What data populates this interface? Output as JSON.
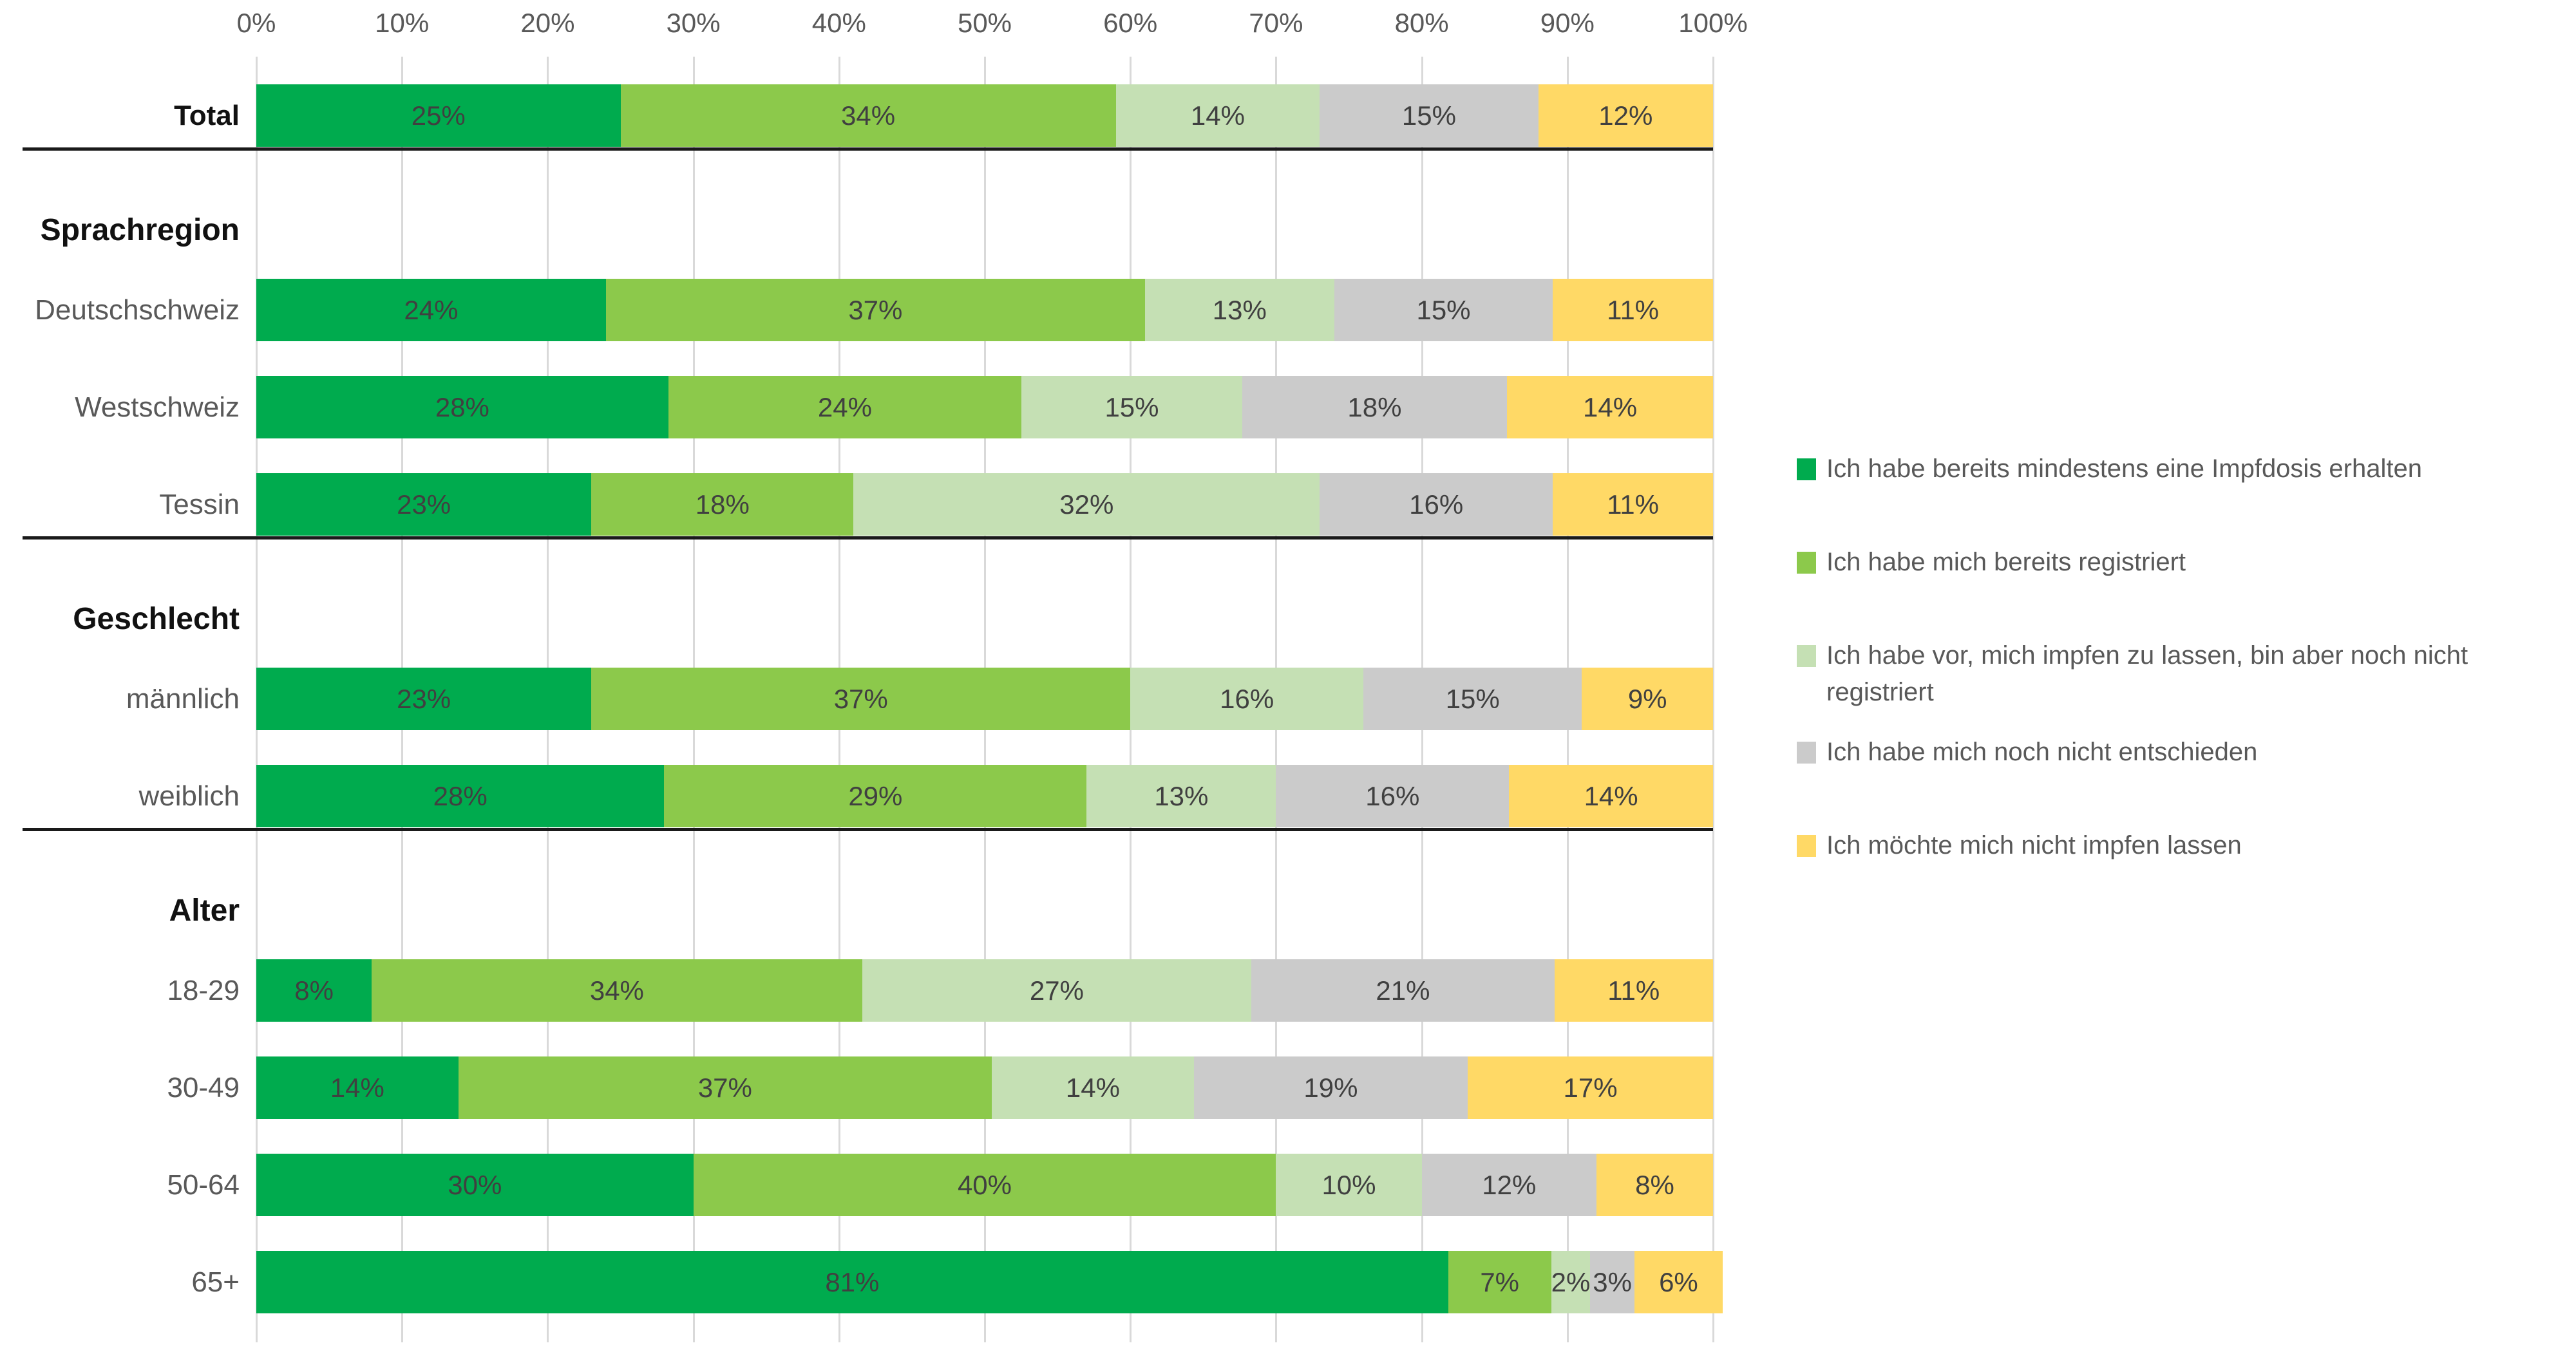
{
  "chart_data": {
    "type": "bar",
    "stacked": true,
    "orientation": "horizontal",
    "unit": "%",
    "xlim": [
      0,
      100
    ],
    "x_ticks": [
      "0%",
      "10%",
      "20%",
      "30%",
      "40%",
      "50%",
      "60%",
      "70%",
      "80%",
      "90%",
      "100%"
    ],
    "grid": true,
    "legend_position": "right",
    "legend": [
      {
        "label": "Ich habe bereits mindestens eine Impfdosis erhalten",
        "color": "#00AB4E"
      },
      {
        "label": "Ich habe mich bereits registriert",
        "color": "#8CC94B"
      },
      {
        "label": "Ich habe vor, mich impfen zu lassen, bin aber noch nicht\nregistriert",
        "color": "#C5E0B4"
      },
      {
        "label": "Ich habe mich noch nicht entschieden",
        "color": "#CBCBCB"
      },
      {
        "label": "Ich möchte mich nicht impfen lassen",
        "color": "#FFD966"
      }
    ],
    "groups": [
      {
        "header": "",
        "rows": [
          {
            "label": "Total",
            "bold": true,
            "values": [
              25,
              34,
              14,
              15,
              12
            ]
          }
        ]
      },
      {
        "header": "Sprachregion",
        "rows": [
          {
            "label": "Deutschschweiz",
            "values": [
              24,
              37,
              13,
              15,
              11
            ]
          },
          {
            "label": "Westschweiz",
            "values": [
              28,
              24,
              15,
              18,
              14
            ]
          },
          {
            "label": "Tessin",
            "values": [
              23,
              18,
              32,
              16,
              11
            ]
          }
        ]
      },
      {
        "header": "Geschlecht",
        "rows": [
          {
            "label": "männlich",
            "values": [
              23,
              37,
              16,
              15,
              9
            ]
          },
          {
            "label": "weiblich",
            "values": [
              28,
              29,
              13,
              16,
              14
            ]
          }
        ]
      },
      {
        "header": "Alter",
        "rows": [
          {
            "label": "18-29",
            "values": [
              8,
              34,
              27,
              21,
              11
            ]
          },
          {
            "label": "30-49",
            "values": [
              14,
              37,
              14,
              19,
              17
            ]
          },
          {
            "label": "50-64",
            "values": [
              30,
              40,
              10,
              12,
              8
            ]
          },
          {
            "label": "65+",
            "values": [
              81,
              7,
              2,
              3,
              6
            ]
          }
        ]
      }
    ]
  }
}
